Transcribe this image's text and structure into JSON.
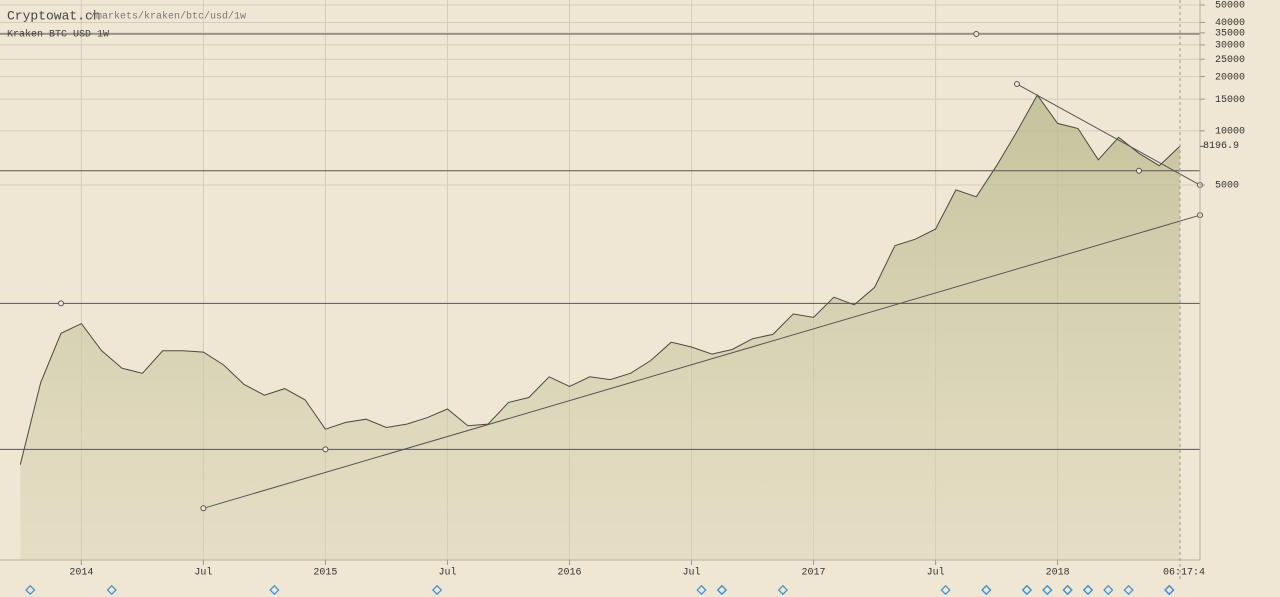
{
  "chart_data": {
    "type": "area",
    "title": "Cryptowat.ch",
    "subtitle": "/markets/kraken/btc/usd/1w",
    "market_label": "Kraken BTC USD 1W",
    "cursor_time": "06:17:4",
    "log_scale": true,
    "grid": true,
    "color": "#4a4a40",
    "xlim": [
      "2013-09",
      "2018-08"
    ],
    "ylim": [
      41.3,
      53300
    ],
    "yticks": [
      5000,
      10000,
      15000,
      20000,
      25000,
      30000,
      35000,
      40000,
      50000
    ],
    "xticks": [
      {
        "value": "2014-01",
        "label": "2014"
      },
      {
        "value": "2014-07",
        "label": "Jul"
      },
      {
        "value": "2015-01",
        "label": "2015"
      },
      {
        "value": "2015-07",
        "label": "Jul"
      },
      {
        "value": "2016-01",
        "label": "2016"
      },
      {
        "value": "2016-07",
        "label": "Jul"
      },
      {
        "value": "2017-01",
        "label": "2017"
      },
      {
        "value": "2017-07",
        "label": "Jul"
      },
      {
        "value": "2018-01",
        "label": "2018"
      }
    ],
    "x": [
      "2013-10",
      "2013-11",
      "2013-12",
      "2014-01",
      "2014-02",
      "2014-03",
      "2014-04",
      "2014-05",
      "2014-06",
      "2014-07",
      "2014-08",
      "2014-09",
      "2014-10",
      "2014-11",
      "2014-12",
      "2015-01",
      "2015-02",
      "2015-03",
      "2015-04",
      "2015-05",
      "2015-06",
      "2015-07",
      "2015-08",
      "2015-09",
      "2015-10",
      "2015-11",
      "2015-12",
      "2016-01",
      "2016-02",
      "2016-03",
      "2016-04",
      "2016-05",
      "2016-06",
      "2016-07",
      "2016-08",
      "2016-09",
      "2016-10",
      "2016-11",
      "2016-12",
      "2017-01",
      "2017-02",
      "2017-03",
      "2017-04",
      "2017-05",
      "2017-06",
      "2017-07",
      "2017-08",
      "2017-09",
      "2017-10",
      "2017-11",
      "2017-12",
      "2018-01",
      "2018-02",
      "2018-03",
      "2018-04",
      "2018-05",
      "2018-06",
      "2018-07"
    ],
    "values": [
      140,
      400,
      750,
      850,
      600,
      480,
      450,
      600,
      600,
      590,
      500,
      390,
      340,
      370,
      320,
      220,
      240,
      250,
      225,
      235,
      255,
      285,
      230,
      235,
      310,
      330,
      430,
      380,
      430,
      415,
      450,
      530,
      670,
      630,
      575,
      610,
      700,
      740,
      960,
      920,
      1190,
      1080,
      1350,
      2300,
      2500,
      2850,
      4700,
      4300,
      6400,
      9900,
      15800,
      11000,
      10300,
      6900,
      9200,
      7500,
      6400,
      8196.9
    ],
    "horizontal_lines": [
      {
        "x": "2017-09",
        "value": 34500
      },
      {
        "x": "2018-05",
        "value": 6000
      },
      {
        "x": "2013-12",
        "value": 1100
      },
      {
        "x": "2015-01",
        "value": 170
      }
    ],
    "trendlines": [
      {
        "x": [
          "2014-07",
          "2018-08"
        ],
        "y": [
          80,
          3400
        ]
      },
      {
        "x": [
          "2017-11",
          "2018-08"
        ],
        "y": [
          18200,
          5000
        ]
      }
    ],
    "event_markers": [
      "2013-10",
      "2014-02",
      "2014-10",
      "2015-06",
      "2016-07",
      "2016-08",
      "2016-08",
      "2016-11",
      "2017-07",
      "2017-09",
      "2017-09",
      "2017-11",
      "2017-11",
      "2017-12",
      "2017-12",
      "2018-01",
      "2018-01",
      "2018-02",
      "2018-02",
      "2018-03",
      "2018-04",
      "2018-06",
      "2018-06",
      "2018-06"
    ]
  }
}
